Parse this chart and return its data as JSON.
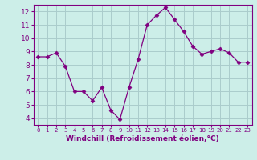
{
  "x": [
    0,
    1,
    2,
    3,
    4,
    5,
    6,
    7,
    8,
    9,
    10,
    11,
    12,
    13,
    14,
    15,
    16,
    17,
    18,
    19,
    20,
    21,
    22,
    23
  ],
  "y": [
    8.6,
    8.6,
    8.9,
    7.9,
    6.0,
    6.0,
    5.3,
    6.3,
    4.6,
    3.9,
    6.3,
    8.4,
    11.0,
    11.7,
    12.3,
    11.4,
    10.5,
    9.4,
    8.8,
    9.0,
    9.2,
    8.9,
    8.2,
    8.2
  ],
  "line_color": "#800080",
  "marker": "D",
  "marker_size": 2.5,
  "bg_color": "#cceee8",
  "grid_color": "#aacccc",
  "xlabel": "Windchill (Refroidissement éolien,°C)",
  "xlabel_color": "#800080",
  "tick_color": "#800080",
  "ylim": [
    3.5,
    12.5
  ],
  "xlim": [
    -0.5,
    23.5
  ],
  "yticks": [
    4,
    5,
    6,
    7,
    8,
    9,
    10,
    11,
    12
  ],
  "xtick_labels": [
    "0",
    "1",
    "2",
    "3",
    "4",
    "5",
    "6",
    "7",
    "8",
    "9",
    "10",
    "11",
    "12",
    "13",
    "14",
    "15",
    "16",
    "17",
    "18",
    "19",
    "20",
    "21",
    "22",
    "23"
  ],
  "spine_color": "#800080"
}
